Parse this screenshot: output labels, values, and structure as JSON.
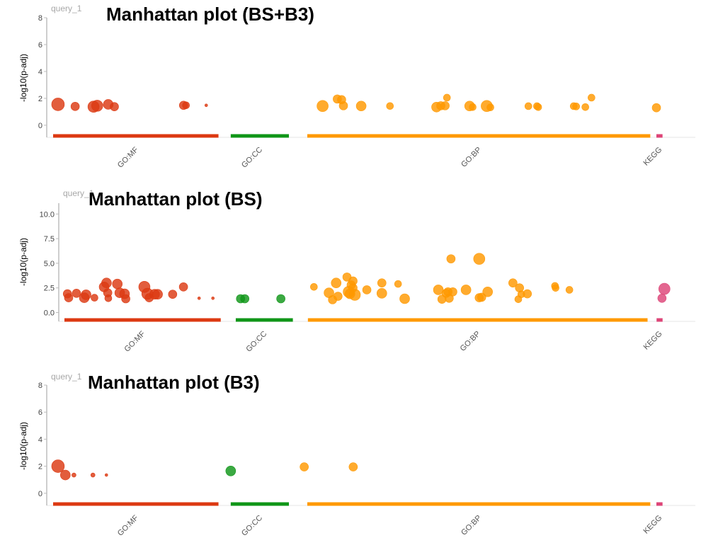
{
  "colors": {
    "GO:MF": "#dc3912",
    "GO:CC": "#109618",
    "GO:BP": "#ff9900",
    "KEGG": "#dd4477"
  },
  "chart_data": [
    {
      "type": "scatter",
      "title": "Manhattan plot (BS+B3)",
      "query_label": "query_1",
      "ylabel": "-log10(p-adj)",
      "ylim": [
        -0.9,
        8
      ],
      "yticks": [
        "0",
        "2",
        "4",
        "6",
        "8"
      ],
      "ytick_values": [
        0,
        2,
        4,
        6,
        8
      ],
      "sources": [
        {
          "name": "GO:MF",
          "start": 0,
          "end": 0.27
        },
        {
          "name": "GO:CC",
          "start": 0.29,
          "end": 0.385
        },
        {
          "name": "GO:BP",
          "start": 0.415,
          "end": 0.975
        },
        {
          "name": "KEGG",
          "start": 0.985,
          "end": 0.995
        }
      ],
      "points": [
        {
          "source": "GO:MF",
          "x": 0.008,
          "y": 1.55,
          "size": 9
        },
        {
          "source": "GO:MF",
          "x": 0.036,
          "y": 1.4,
          "size": 6
        },
        {
          "source": "GO:MF",
          "x": 0.066,
          "y": 1.38,
          "size": 8
        },
        {
          "source": "GO:MF",
          "x": 0.072,
          "y": 1.45,
          "size": 8
        },
        {
          "source": "GO:MF",
          "x": 0.09,
          "y": 1.55,
          "size": 7
        },
        {
          "source": "GO:MF",
          "x": 0.1,
          "y": 1.38,
          "size": 6
        },
        {
          "source": "GO:MF",
          "x": 0.213,
          "y": 1.48,
          "size": 6
        },
        {
          "source": "GO:MF",
          "x": 0.217,
          "y": 1.48,
          "size": 5
        },
        {
          "source": "GO:MF",
          "x": 0.25,
          "y": 1.48,
          "size": 2
        },
        {
          "source": "GO:BP",
          "x": 0.44,
          "y": 1.43,
          "size": 8
        },
        {
          "source": "GO:BP",
          "x": 0.464,
          "y": 1.95,
          "size": 6
        },
        {
          "source": "GO:BP",
          "x": 0.471,
          "y": 1.9,
          "size": 6
        },
        {
          "source": "GO:BP",
          "x": 0.474,
          "y": 1.45,
          "size": 6
        },
        {
          "source": "GO:BP",
          "x": 0.503,
          "y": 1.43,
          "size": 7
        },
        {
          "source": "GO:BP",
          "x": 0.55,
          "y": 1.43,
          "size": 5
        },
        {
          "source": "GO:BP",
          "x": 0.626,
          "y": 1.35,
          "size": 7
        },
        {
          "source": "GO:BP",
          "x": 0.633,
          "y": 1.45,
          "size": 6
        },
        {
          "source": "GO:BP",
          "x": 0.64,
          "y": 1.45,
          "size": 6
        },
        {
          "source": "GO:BP",
          "x": 0.643,
          "y": 2.05,
          "size": 5
        },
        {
          "source": "GO:BP",
          "x": 0.68,
          "y": 1.43,
          "size": 7
        },
        {
          "source": "GO:BP",
          "x": 0.685,
          "y": 1.35,
          "size": 5
        },
        {
          "source": "GO:BP",
          "x": 0.708,
          "y": 1.43,
          "size": 8
        },
        {
          "source": "GO:BP",
          "x": 0.714,
          "y": 1.33,
          "size": 5
        },
        {
          "source": "GO:BP",
          "x": 0.776,
          "y": 1.42,
          "size": 5
        },
        {
          "source": "GO:BP",
          "x": 0.79,
          "y": 1.42,
          "size": 5
        },
        {
          "source": "GO:BP",
          "x": 0.792,
          "y": 1.35,
          "size": 5
        },
        {
          "source": "GO:BP",
          "x": 0.85,
          "y": 1.42,
          "size": 5
        },
        {
          "source": "GO:BP",
          "x": 0.854,
          "y": 1.4,
          "size": 5
        },
        {
          "source": "GO:BP",
          "x": 0.869,
          "y": 1.35,
          "size": 5
        },
        {
          "source": "GO:BP",
          "x": 0.879,
          "y": 2.05,
          "size": 5
        },
        {
          "source": "GO:BP",
          "x": 0.985,
          "y": 1.3,
          "size": 6
        }
      ]
    },
    {
      "type": "scatter",
      "title": "Manhattan plot (BS)",
      "query_label": "query_1",
      "ylabel": "-log10(p-adj)",
      "ylim": [
        -0.9,
        11.1
      ],
      "yticks": [
        "0.0",
        "2.5",
        "5.0",
        "7.5",
        "10.0"
      ],
      "ytick_values": [
        0,
        2.5,
        5,
        7.5,
        10
      ],
      "sources": [
        {
          "name": "GO:MF",
          "start": 0,
          "end": 0.26
        },
        {
          "name": "GO:CC",
          "start": 0.285,
          "end": 0.38
        },
        {
          "name": "GO:BP",
          "start": 0.405,
          "end": 0.97
        },
        {
          "name": "KEGG",
          "start": 0.985,
          "end": 0.995
        }
      ],
      "points": [
        {
          "source": "GO:MF",
          "x": 0.005,
          "y": 1.9,
          "size": 6
        },
        {
          "source": "GO:MF",
          "x": 0.007,
          "y": 1.5,
          "size": 6
        },
        {
          "source": "GO:MF",
          "x": 0.02,
          "y": 1.95,
          "size": 6
        },
        {
          "source": "GO:MF",
          "x": 0.033,
          "y": 1.5,
          "size": 7
        },
        {
          "source": "GO:MF",
          "x": 0.036,
          "y": 1.8,
          "size": 7
        },
        {
          "source": "GO:MF",
          "x": 0.05,
          "y": 1.5,
          "size": 5
        },
        {
          "source": "GO:MF",
          "x": 0.066,
          "y": 2.6,
          "size": 7
        },
        {
          "source": "GO:MF",
          "x": 0.07,
          "y": 3.0,
          "size": 7
        },
        {
          "source": "GO:MF",
          "x": 0.072,
          "y": 2.0,
          "size": 6
        },
        {
          "source": "GO:MF",
          "x": 0.073,
          "y": 1.45,
          "size": 5
        },
        {
          "source": "GO:MF",
          "x": 0.088,
          "y": 2.9,
          "size": 7
        },
        {
          "source": "GO:MF",
          "x": 0.092,
          "y": 2.0,
          "size": 7
        },
        {
          "source": "GO:MF",
          "x": 0.1,
          "y": 1.9,
          "size": 7
        },
        {
          "source": "GO:MF",
          "x": 0.102,
          "y": 1.4,
          "size": 6
        },
        {
          "source": "GO:MF",
          "x": 0.133,
          "y": 2.6,
          "size": 8
        },
        {
          "source": "GO:MF",
          "x": 0.138,
          "y": 1.9,
          "size": 8
        },
        {
          "source": "GO:MF",
          "x": 0.141,
          "y": 1.5,
          "size": 6
        },
        {
          "source": "GO:MF",
          "x": 0.15,
          "y": 1.85,
          "size": 7
        },
        {
          "source": "GO:MF",
          "x": 0.155,
          "y": 1.85,
          "size": 7
        },
        {
          "source": "GO:MF",
          "x": 0.18,
          "y": 1.85,
          "size": 6
        },
        {
          "source": "GO:MF",
          "x": 0.198,
          "y": 2.6,
          "size": 6
        },
        {
          "source": "GO:MF",
          "x": 0.224,
          "y": 1.45,
          "size": 2
        },
        {
          "source": "GO:MF",
          "x": 0.247,
          "y": 1.45,
          "size": 2
        },
        {
          "source": "GO:CC",
          "x": 0.293,
          "y": 1.4,
          "size": 6
        },
        {
          "source": "GO:CC",
          "x": 0.3,
          "y": 1.4,
          "size": 6
        },
        {
          "source": "GO:CC",
          "x": 0.36,
          "y": 1.4,
          "size": 6
        },
        {
          "source": "GO:BP",
          "x": 0.415,
          "y": 2.6,
          "size": 5
        },
        {
          "source": "GO:BP",
          "x": 0.44,
          "y": 2.0,
          "size": 7
        },
        {
          "source": "GO:BP",
          "x": 0.446,
          "y": 1.3,
          "size": 6
        },
        {
          "source": "GO:BP",
          "x": 0.452,
          "y": 3.0,
          "size": 7
        },
        {
          "source": "GO:BP",
          "x": 0.455,
          "y": 1.65,
          "size": 6
        },
        {
          "source": "GO:BP",
          "x": 0.47,
          "y": 3.6,
          "size": 6
        },
        {
          "source": "GO:BP",
          "x": 0.473,
          "y": 2.1,
          "size": 8
        },
        {
          "source": "GO:BP",
          "x": 0.475,
          "y": 1.9,
          "size": 7
        },
        {
          "source": "GO:BP",
          "x": 0.477,
          "y": 2.8,
          "size": 6
        },
        {
          "source": "GO:BP",
          "x": 0.48,
          "y": 2.5,
          "size": 6
        },
        {
          "source": "GO:BP",
          "x": 0.48,
          "y": 3.2,
          "size": 6
        },
        {
          "source": "GO:BP",
          "x": 0.483,
          "y": 1.8,
          "size": 8
        },
        {
          "source": "GO:BP",
          "x": 0.503,
          "y": 2.3,
          "size": 6
        },
        {
          "source": "GO:BP",
          "x": 0.528,
          "y": 3.0,
          "size": 6
        },
        {
          "source": "GO:BP",
          "x": 0.528,
          "y": 1.95,
          "size": 7
        },
        {
          "source": "GO:BP",
          "x": 0.555,
          "y": 2.9,
          "size": 5
        },
        {
          "source": "GO:BP",
          "x": 0.566,
          "y": 1.4,
          "size": 7
        },
        {
          "source": "GO:BP",
          "x": 0.622,
          "y": 2.3,
          "size": 7
        },
        {
          "source": "GO:BP",
          "x": 0.628,
          "y": 1.35,
          "size": 6
        },
        {
          "source": "GO:BP",
          "x": 0.635,
          "y": 1.95,
          "size": 6
        },
        {
          "source": "GO:BP",
          "x": 0.638,
          "y": 2.1,
          "size": 6
        },
        {
          "source": "GO:BP",
          "x": 0.64,
          "y": 1.45,
          "size": 6
        },
        {
          "source": "GO:BP",
          "x": 0.643,
          "y": 5.45,
          "size": 6
        },
        {
          "source": "GO:BP",
          "x": 0.646,
          "y": 2.1,
          "size": 6
        },
        {
          "source": "GO:BP",
          "x": 0.668,
          "y": 2.3,
          "size": 7
        },
        {
          "source": "GO:BP",
          "x": 0.69,
          "y": 5.45,
          "size": 8
        },
        {
          "source": "GO:BP",
          "x": 0.69,
          "y": 1.5,
          "size": 6
        },
        {
          "source": "GO:BP",
          "x": 0.694,
          "y": 1.55,
          "size": 6
        },
        {
          "source": "GO:BP",
          "x": 0.704,
          "y": 2.1,
          "size": 7
        },
        {
          "source": "GO:BP",
          "x": 0.746,
          "y": 3.0,
          "size": 6
        },
        {
          "source": "GO:BP",
          "x": 0.755,
          "y": 1.35,
          "size": 5
        },
        {
          "source": "GO:BP",
          "x": 0.757,
          "y": 2.5,
          "size": 6
        },
        {
          "source": "GO:BP",
          "x": 0.76,
          "y": 1.85,
          "size": 5
        },
        {
          "source": "GO:BP",
          "x": 0.77,
          "y": 1.9,
          "size": 6
        },
        {
          "source": "GO:BP",
          "x": 0.816,
          "y": 2.7,
          "size": 5
        },
        {
          "source": "GO:BP",
          "x": 0.817,
          "y": 2.5,
          "size": 5
        },
        {
          "source": "GO:BP",
          "x": 0.84,
          "y": 2.3,
          "size": 5
        },
        {
          "source": "KEGG",
          "x": 0.994,
          "y": 1.45,
          "size": 6
        },
        {
          "source": "KEGG",
          "x": 0.998,
          "y": 2.4,
          "size": 8
        }
      ]
    },
    {
      "type": "scatter",
      "title": "Manhattan plot (B3)",
      "query_label": "query_1",
      "ylabel": "-log10(p-adj)",
      "ylim": [
        -0.9,
        8
      ],
      "yticks": [
        "0",
        "2",
        "4",
        "6",
        "8"
      ],
      "ytick_values": [
        0,
        2,
        4,
        6,
        8
      ],
      "sources": [
        {
          "name": "GO:MF",
          "start": 0,
          "end": 0.27
        },
        {
          "name": "GO:CC",
          "start": 0.29,
          "end": 0.385
        },
        {
          "name": "GO:BP",
          "start": 0.415,
          "end": 0.975
        },
        {
          "name": "KEGG",
          "start": 0.985,
          "end": 0.995
        }
      ],
      "points": [
        {
          "source": "GO:MF",
          "x": 0.008,
          "y": 2.0,
          "size": 9
        },
        {
          "source": "GO:MF",
          "x": 0.02,
          "y": 1.35,
          "size": 7
        },
        {
          "source": "GO:MF",
          "x": 0.034,
          "y": 1.35,
          "size": 3
        },
        {
          "source": "GO:MF",
          "x": 0.065,
          "y": 1.35,
          "size": 3
        },
        {
          "source": "GO:MF",
          "x": 0.087,
          "y": 1.35,
          "size": 2
        },
        {
          "source": "GO:CC",
          "x": 0.29,
          "y": 1.65,
          "size": 7
        },
        {
          "source": "GO:BP",
          "x": 0.41,
          "y": 1.95,
          "size": 6
        },
        {
          "source": "GO:BP",
          "x": 0.49,
          "y": 1.95,
          "size": 6
        }
      ]
    }
  ]
}
